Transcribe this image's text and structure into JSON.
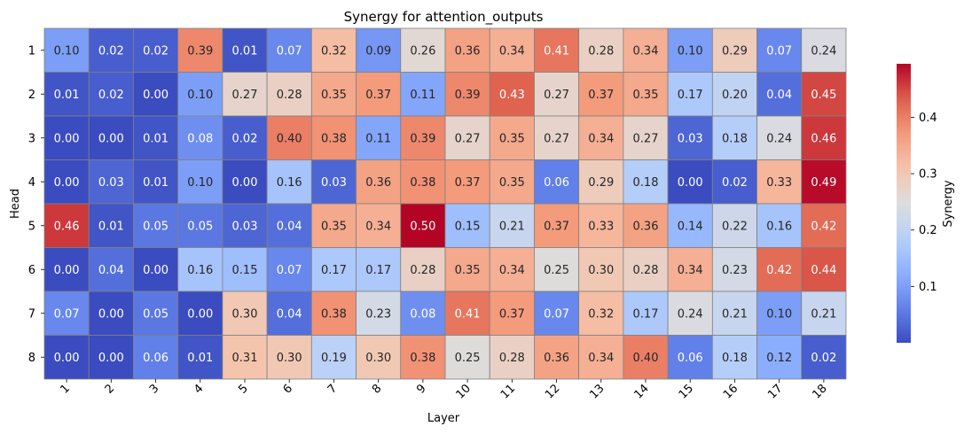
{
  "chart_data": {
    "type": "heatmap",
    "title": "Synergy for attention_outputs",
    "xlabel": "Layer",
    "ylabel": "Head",
    "x_categories": [
      "1",
      "2",
      "3",
      "4",
      "5",
      "6",
      "7",
      "8",
      "9",
      "10",
      "11",
      "12",
      "13",
      "14",
      "15",
      "16",
      "17",
      "18"
    ],
    "y_categories": [
      "1",
      "2",
      "3",
      "4",
      "5",
      "6",
      "7",
      "8"
    ],
    "values": [
      [
        0.1,
        0.02,
        0.02,
        0.39,
        0.01,
        0.07,
        0.32,
        0.09,
        0.26,
        0.36,
        0.34,
        0.41,
        0.28,
        0.34,
        0.1,
        0.29,
        0.07,
        0.24
      ],
      [
        0.01,
        0.02,
        0.0,
        0.1,
        0.27,
        0.28,
        0.35,
        0.37,
        0.11,
        0.39,
        0.43,
        0.27,
        0.37,
        0.35,
        0.17,
        0.2,
        0.04,
        0.45
      ],
      [
        0.0,
        0.0,
        0.01,
        0.08,
        0.02,
        0.4,
        0.38,
        0.11,
        0.39,
        0.27,
        0.35,
        0.27,
        0.34,
        0.27,
        0.03,
        0.18,
        0.24,
        0.46
      ],
      [
        0.0,
        0.03,
        0.01,
        0.1,
        0.0,
        0.16,
        0.03,
        0.36,
        0.38,
        0.37,
        0.35,
        0.06,
        0.29,
        0.18,
        0.0,
        0.02,
        0.33,
        0.49
      ],
      [
        0.46,
        0.01,
        0.05,
        0.05,
        0.03,
        0.04,
        0.35,
        0.34,
        0.5,
        0.15,
        0.21,
        0.37,
        0.33,
        0.36,
        0.14,
        0.22,
        0.16,
        0.42
      ],
      [
        0.0,
        0.04,
        0.0,
        0.16,
        0.15,
        0.07,
        0.17,
        0.17,
        0.28,
        0.35,
        0.34,
        0.25,
        0.3,
        0.28,
        0.34,
        0.23,
        0.42,
        0.44
      ],
      [
        0.07,
        0.0,
        0.05,
        0.0,
        0.3,
        0.04,
        0.38,
        0.23,
        0.08,
        0.41,
        0.37,
        0.07,
        0.32,
        0.17,
        0.24,
        0.21,
        0.1,
        0.21
      ],
      [
        0.0,
        0.0,
        0.06,
        0.01,
        0.31,
        0.3,
        0.19,
        0.3,
        0.38,
        0.25,
        0.28,
        0.36,
        0.34,
        0.4,
        0.06,
        0.18,
        0.12,
        0.02
      ]
    ],
    "colormap": "coolwarm",
    "vmin": 0.0,
    "vmax": 0.495,
    "colorbar": {
      "label": "Synergy",
      "ticks": [
        0.1,
        0.2,
        0.3,
        0.4
      ],
      "tick_labels": [
        "0.1",
        "0.2",
        "0.3",
        "0.4"
      ]
    },
    "cell_edge_color": "#808080",
    "annotation_format": "two decimals"
  }
}
